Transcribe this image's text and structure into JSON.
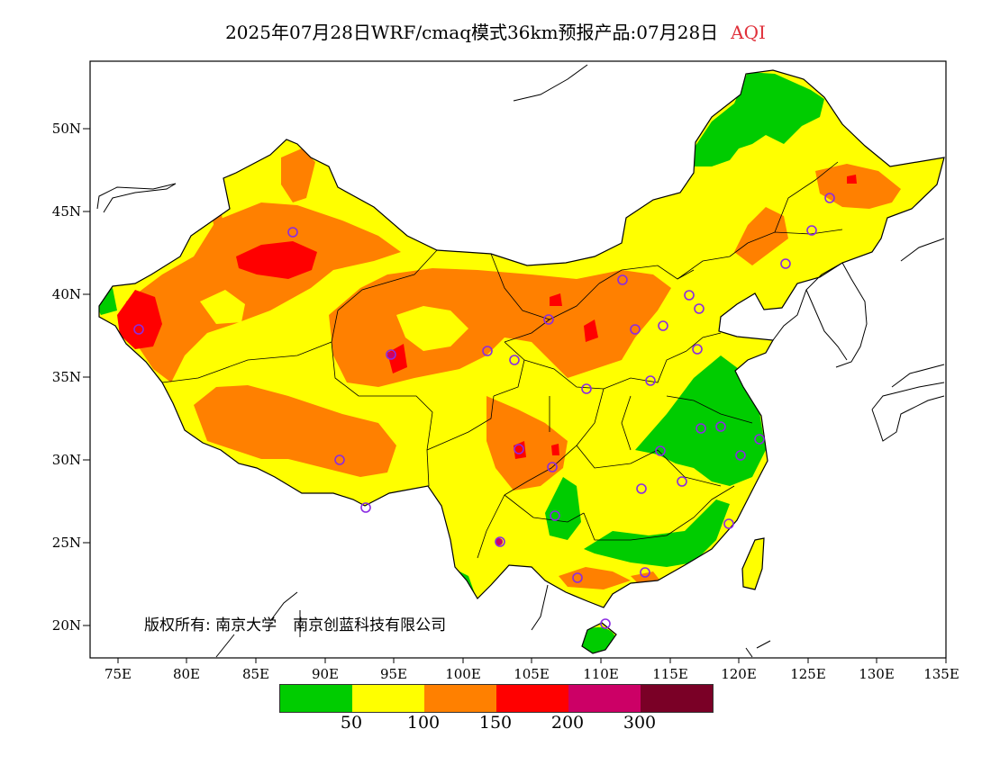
{
  "title": {
    "main": "2025年07月28日WRF/cmaq模式36km预报产品:07月28日",
    "variable": "AQI",
    "variable_color": "#e0303a"
  },
  "axes": {
    "y_ticks": [
      "50N",
      "45N",
      "40N",
      "35N",
      "30N",
      "25N",
      "20N"
    ],
    "x_ticks": [
      "75E",
      "80E",
      "85E",
      "90E",
      "95E",
      "100E",
      "105E",
      "110E",
      "115E",
      "120E",
      "125E",
      "130E",
      "135E"
    ],
    "lon_range": [
      73,
      135
    ],
    "lat_range": [
      18,
      54
    ]
  },
  "credit": {
    "prefix": "版权所有:",
    "org1": "南京大学",
    "org2": "南京创蓝科技有限公司"
  },
  "legend": {
    "colors": [
      "#00cc00",
      "#ffff00",
      "#ff8000",
      "#ff0000",
      "#cc0066",
      "#7a0026"
    ],
    "ticks": [
      "50",
      "100",
      "150",
      "200",
      "300"
    ]
  },
  "colors": {
    "green": "#00cc00",
    "yellow": "#ffff00",
    "orange": "#ff8000",
    "red": "#ff0000",
    "magenta": "#cc0066",
    "station": "#8a2be2"
  }
}
